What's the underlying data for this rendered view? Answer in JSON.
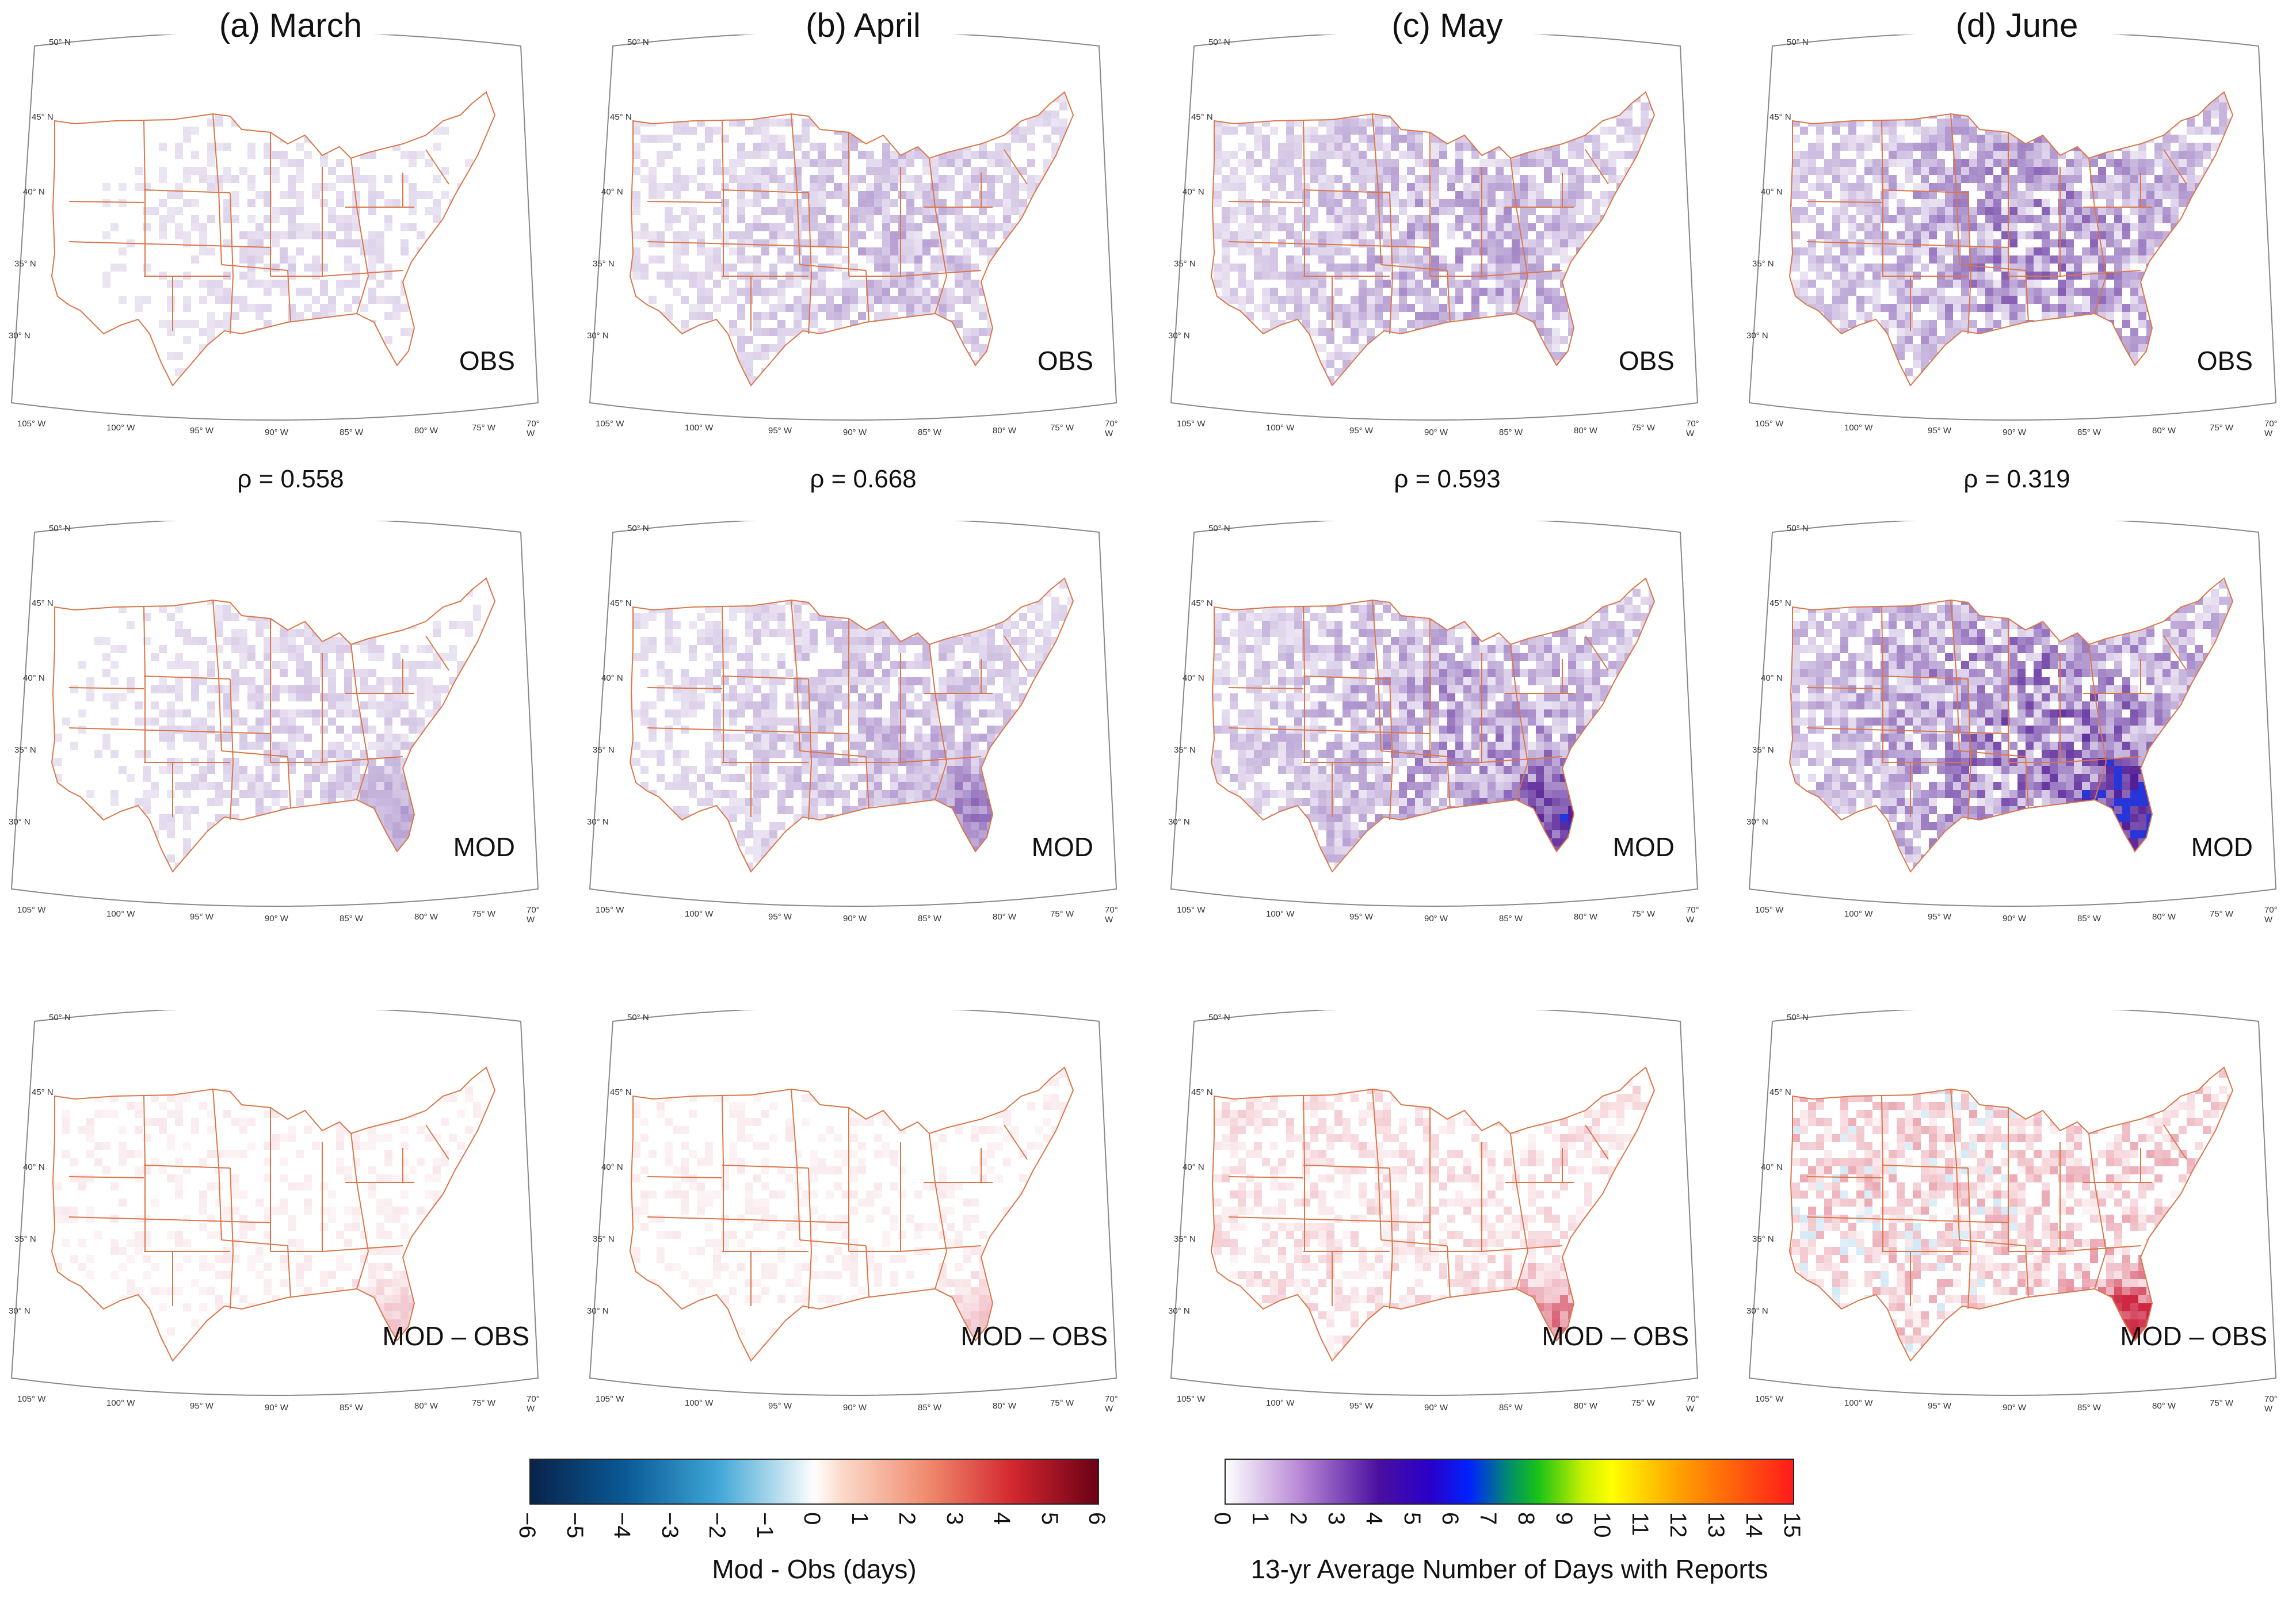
{
  "columns": [
    {
      "title": "(a) March",
      "rho": "ρ = 0.558"
    },
    {
      "title": "(b) April",
      "rho": "ρ = 0.668"
    },
    {
      "title": "(c) May",
      "rho": "ρ = 0.593"
    },
    {
      "title": "(d) June",
      "rho": "ρ = 0.319"
    }
  ],
  "row_labels": {
    "obs": "OBS",
    "mod": "MOD",
    "diff": [
      "MOD – OBS",
      "MOD – OBS",
      "MOD  – OBS",
      "MOD – OBS"
    ]
  },
  "lat_labels": [
    "50° N",
    "45° N",
    "40° N",
    "35° N",
    "30° N"
  ],
  "lon_labels": [
    "105° W",
    "100° W",
    "95° W",
    "90° W",
    "85° W",
    "80° W",
    "75° W",
    "70° W"
  ],
  "colorbar_diff": {
    "title": "Mod - Obs (days)",
    "ticks": [
      "−6",
      "−5",
      "−4",
      "−3",
      "−2",
      "−1",
      "0",
      "1",
      "2",
      "3",
      "4",
      "5",
      "6"
    ],
    "range": [
      -6,
      6
    ]
  },
  "colorbar_days": {
    "title": "13-yr Average Number of Days with Reports",
    "ticks": [
      "0",
      "1",
      "2",
      "3",
      "4",
      "5",
      "6",
      "7",
      "8",
      "9",
      "10",
      "11",
      "12",
      "13",
      "14",
      "15"
    ],
    "range": [
      0,
      15
    ]
  },
  "colors": {
    "state_borders": "#d9774a",
    "map_frame": "#888888",
    "obs_light": "#e9d3f0",
    "obs_dark": "#4a0f8f",
    "diff_pos": "#c8102e",
    "diff_neg": "#4aa3d9"
  },
  "month_intensity": {
    "obs": [
      0.25,
      0.45,
      0.6,
      0.8
    ],
    "mod": [
      0.3,
      0.45,
      0.7,
      0.95
    ],
    "diff": [
      0.15,
      0.15,
      0.35,
      0.6
    ]
  }
}
